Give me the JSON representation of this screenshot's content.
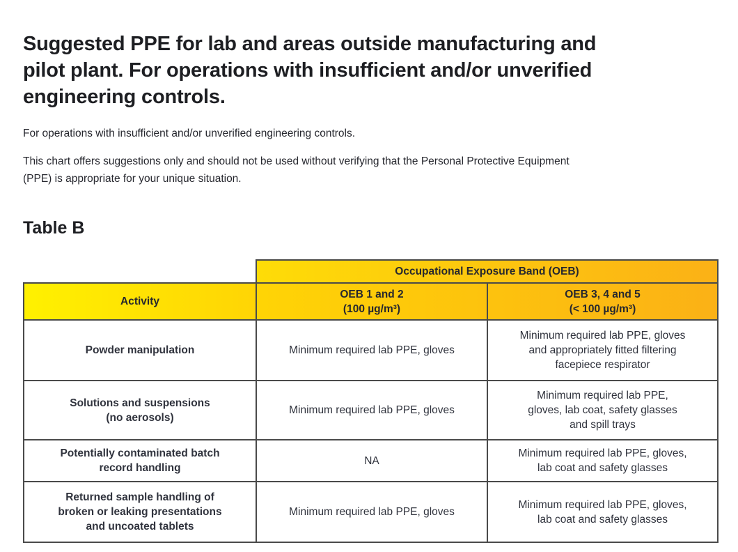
{
  "page": {
    "title": "Suggested PPE for lab and areas outside manufacturing and\npilot plant. For operations with insufficient and/or unverified\nengineering controls.",
    "intro": "For operations with insufficient and/or unverified engineering controls.",
    "disclaimer": "This chart offers suggestions only and should not be used without verifying that the Personal Protective Equipment\n(PPE) is appropriate for your unique situation.",
    "table_label": "Table B"
  },
  "table": {
    "band_header": "Occupational Exposure Band (OEB)",
    "columns": [
      {
        "label": "Activity",
        "sublabel": ""
      },
      {
        "label": "OEB 1 and 2",
        "sublabel": "(100 µg/m³)"
      },
      {
        "label": "OEB 3, 4 and 5",
        "sublabel": "(< 100 µg/m³)"
      }
    ],
    "rows": [
      {
        "activity": "Powder manipulation",
        "oeb12": "Minimum required lab PPE, gloves",
        "oeb345": "Minimum required lab PPE, gloves\nand appropriately fitted filtering\nfacepiece respirator"
      },
      {
        "activity": "Solutions and suspensions\n(no aerosols)",
        "oeb12": "Minimum required lab PPE, gloves",
        "oeb345": "Minimum required lab PPE,\ngloves, lab coat, safety glasses\nand spill trays"
      },
      {
        "activity": "Potentially contaminated batch\nrecord handling",
        "oeb12": "NA",
        "oeb345": "Minimum required lab PPE, gloves,\nlab coat and safety glasses"
      },
      {
        "activity": "Returned sample handling of\nbroken or leaking presentations\nand uncoated tablets",
        "oeb12": "Minimum required lab PPE, gloves",
        "oeb345": "Minimum required lab PPE, gloves,\nlab coat and safety glasses"
      }
    ],
    "colors": {
      "gradient_left": "#fff100",
      "gradient_right": "#fbb116",
      "border": "#4a4a4a",
      "text": "#30333d"
    }
  }
}
